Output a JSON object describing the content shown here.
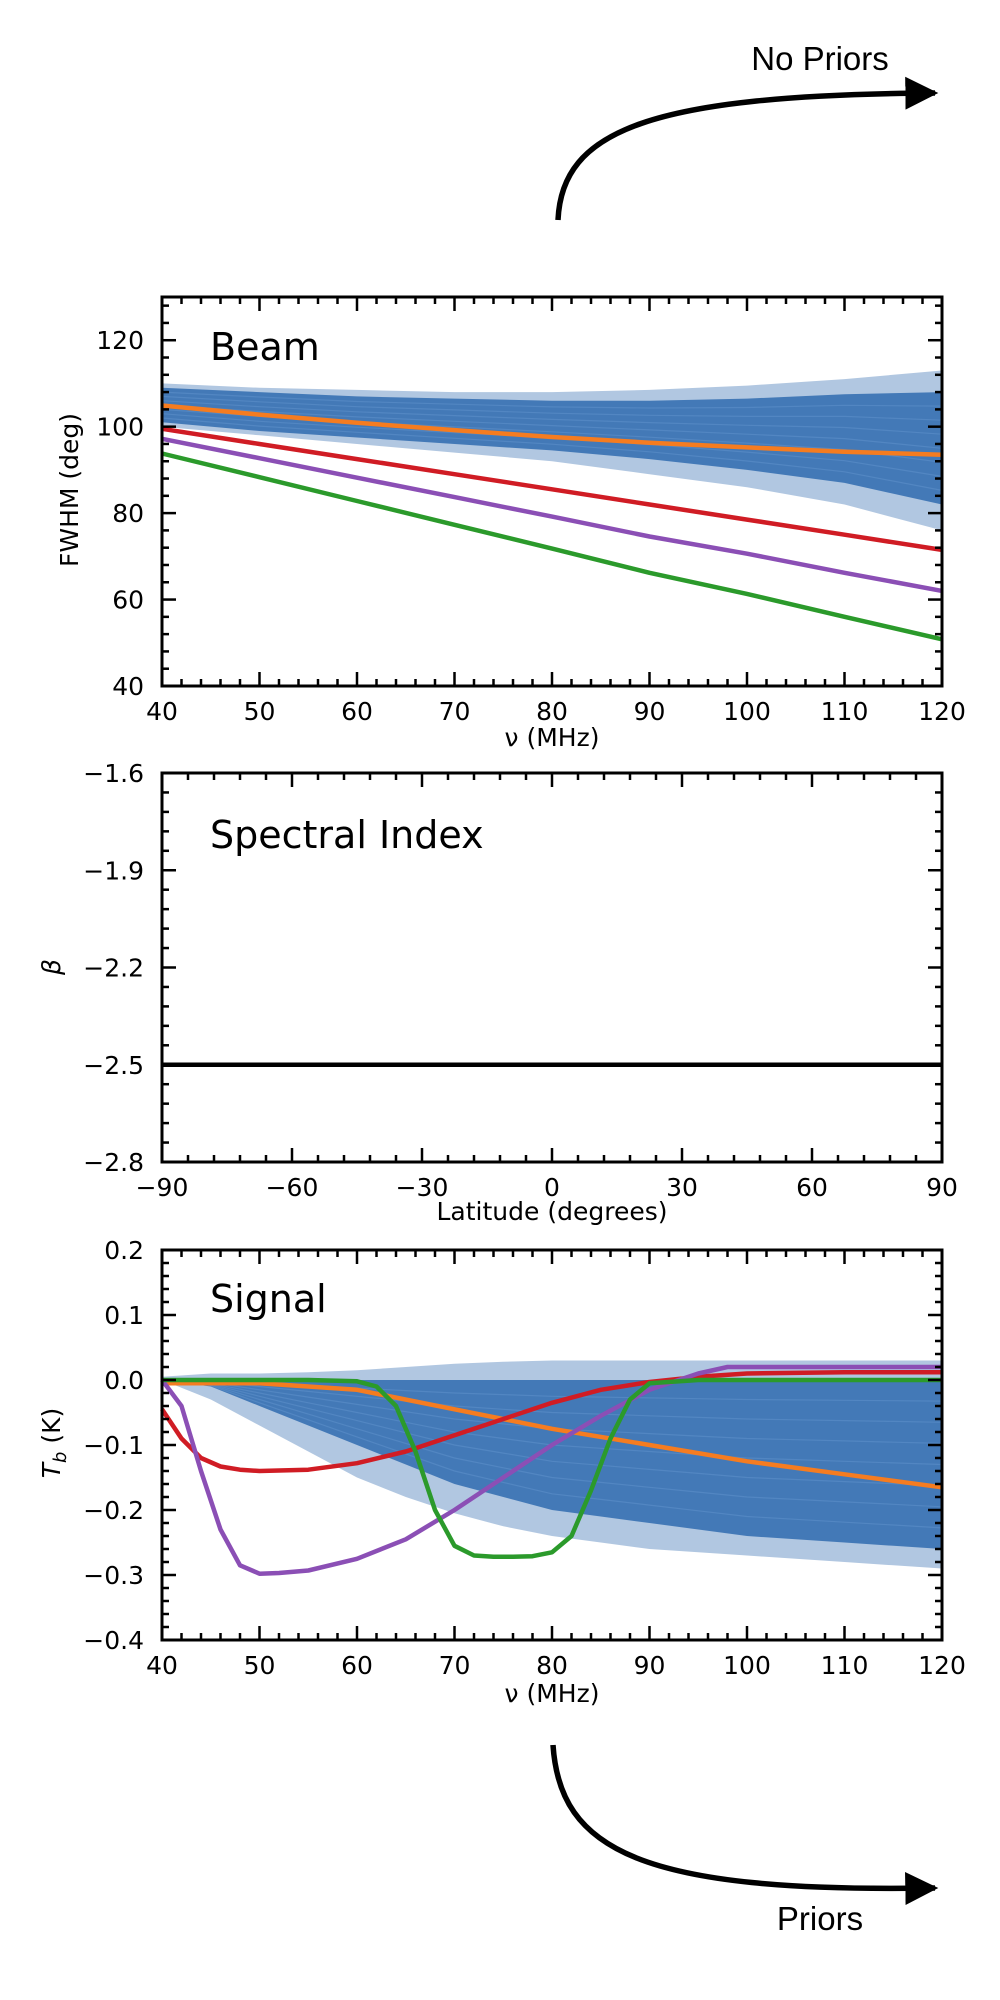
{
  "annotations": {
    "top": "No Priors",
    "bottom": "Priors"
  },
  "colors": {
    "band": "#1f5fa8",
    "orange": "#f57c20",
    "red": "#d01c24",
    "purple": "#8b4fb5",
    "green": "#2b9a2b",
    "black": "#000000"
  },
  "chart_data": [
    {
      "id": "beam",
      "type": "line",
      "title": "Beam",
      "xlabel": "ν (MHz)",
      "ylabel": "FWHM (deg)",
      "xlim": [
        40,
        120
      ],
      "ylim": [
        40,
        130
      ],
      "xticks": [
        40,
        50,
        60,
        70,
        80,
        90,
        100,
        110,
        120
      ],
      "yticks": [
        40,
        60,
        80,
        100,
        120
      ],
      "xtick_labels": [
        "40",
        "50",
        "60",
        "70",
        "80",
        "90",
        "100",
        "110",
        "120"
      ],
      "ytick_labels": [
        "40",
        "60",
        "80",
        "100",
        "120"
      ],
      "band": {
        "name": "posterior samples",
        "x": [
          40,
          50,
          60,
          70,
          80,
          90,
          100,
          110,
          120
        ],
        "upper": [
          110,
          109,
          108.5,
          108,
          108,
          108.5,
          109.5,
          111,
          113
        ],
        "lower": [
          100,
          98,
          96,
          94,
          92,
          89,
          86,
          82,
          76
        ],
        "core_upper": [
          109,
          108,
          107,
          106.5,
          106,
          106,
          106.5,
          107.5,
          108
        ],
        "core_lower": [
          101,
          99,
          97.5,
          96,
          94.5,
          92.5,
          90,
          87,
          82
        ]
      },
      "series": [
        {
          "name": "orange",
          "x": [
            40,
            50,
            60,
            70,
            80,
            90,
            100,
            110,
            120
          ],
          "values": [
            104.9,
            102.8,
            100.9,
            99.2,
            97.6,
            96.3,
            95.2,
            94.2,
            93.5
          ]
        },
        {
          "name": "red",
          "x": [
            40,
            50,
            60,
            70,
            80,
            90,
            100,
            110,
            120
          ],
          "values": [
            99.5,
            96.0,
            92.5,
            89.0,
            85.5,
            82.0,
            78.5,
            75.0,
            71.5
          ]
        },
        {
          "name": "purple",
          "x": [
            40,
            50,
            60,
            70,
            80,
            90,
            100,
            110,
            120
          ],
          "values": [
            97.2,
            92.7,
            88.2,
            83.7,
            79.2,
            74.6,
            70.6,
            66.2,
            62.0
          ]
        },
        {
          "name": "green",
          "x": [
            40,
            50,
            60,
            70,
            80,
            90,
            100,
            110,
            120
          ],
          "values": [
            93.8,
            88.3,
            82.8,
            77.3,
            71.8,
            66.2,
            61.3,
            56.0,
            50.8
          ]
        }
      ]
    },
    {
      "id": "spectral-index",
      "type": "line",
      "title": "Spectral Index",
      "xlabel": "Latitude (degrees)",
      "ylabel": "β",
      "xlim": [
        -90,
        90
      ],
      "ylim": [
        -2.8,
        -1.6
      ],
      "xticks": [
        -90,
        -60,
        -30,
        0,
        30,
        60,
        90
      ],
      "yticks": [
        -2.8,
        -2.5,
        -2.2,
        -1.9,
        -1.6
      ],
      "xtick_labels": [
        "−90",
        "−60",
        "−30",
        "0",
        "30",
        "60",
        "90"
      ],
      "ytick_labels": [
        "−2.8",
        "−2.5",
        "−2.2",
        "−1.9",
        "−1.6"
      ],
      "series": [
        {
          "name": "black",
          "x": [
            -90,
            90
          ],
          "values": [
            -2.5,
            -2.5
          ]
        }
      ]
    },
    {
      "id": "signal",
      "type": "line",
      "title": "Signal",
      "xlabel": "ν (MHz)",
      "ylabel": "T_b (K)",
      "xlim": [
        40,
        120
      ],
      "ylim": [
        -0.4,
        0.2
      ],
      "xticks": [
        40,
        50,
        60,
        70,
        80,
        90,
        100,
        110,
        120
      ],
      "yticks": [
        -0.4,
        -0.3,
        -0.2,
        -0.1,
        0.0,
        0.1,
        0.2
      ],
      "xtick_labels": [
        "40",
        "50",
        "60",
        "70",
        "80",
        "90",
        "100",
        "110",
        "120"
      ],
      "ytick_labels": [
        "−0.4",
        "−0.3",
        "−0.2",
        "−0.1",
        "0.0",
        "0.1",
        "0.2"
      ],
      "band": {
        "name": "posterior samples",
        "x": [
          40,
          45,
          50,
          55,
          60,
          65,
          70,
          75,
          80,
          85,
          90,
          95,
          100,
          105,
          110,
          115,
          120
        ],
        "upper": [
          0.005,
          0.01,
          0.01,
          0.012,
          0.015,
          0.02,
          0.025,
          0.028,
          0.03,
          0.03,
          0.03,
          0.03,
          0.03,
          0.03,
          0.03,
          0.03,
          0.03
        ],
        "lower": [
          0.0,
          -0.03,
          -0.07,
          -0.11,
          -0.15,
          -0.18,
          -0.205,
          -0.225,
          -0.24,
          -0.25,
          -0.26,
          -0.265,
          -0.27,
          -0.275,
          -0.28,
          -0.285,
          -0.29
        ],
        "core_upper": [
          0.0,
          0.0,
          0.0,
          0.0,
          0.0,
          0.0,
          0.0,
          0.0,
          0.0,
          0.0,
          0.0,
          0.0,
          0.0,
          0.0,
          0.0,
          0.0,
          0.0
        ],
        "core_lower": [
          0.0,
          -0.01,
          -0.04,
          -0.07,
          -0.1,
          -0.13,
          -0.16,
          -0.18,
          -0.2,
          -0.21,
          -0.22,
          -0.23,
          -0.24,
          -0.245,
          -0.25,
          -0.255,
          -0.26
        ]
      },
      "series": [
        {
          "name": "orange",
          "x": [
            40,
            50,
            60,
            70,
            80,
            90,
            100,
            110,
            120
          ],
          "values": [
            -0.005,
            -0.005,
            -0.015,
            -0.045,
            -0.075,
            -0.1,
            -0.125,
            -0.145,
            -0.165
          ]
        },
        {
          "name": "red",
          "x": [
            40,
            42,
            44,
            46,
            48,
            50,
            55,
            60,
            65,
            70,
            75,
            80,
            85,
            90,
            95,
            100,
            110,
            120
          ],
          "values": [
            -0.045,
            -0.09,
            -0.12,
            -0.133,
            -0.138,
            -0.14,
            -0.138,
            -0.128,
            -0.11,
            -0.085,
            -0.06,
            -0.035,
            -0.015,
            -0.003,
            0.005,
            0.01,
            0.012,
            0.012
          ]
        },
        {
          "name": "purple",
          "x": [
            40,
            42,
            44,
            46,
            48,
            50,
            52,
            55,
            60,
            65,
            70,
            75,
            80,
            85,
            90,
            95,
            98,
            100,
            110,
            120
          ],
          "values": [
            0.0,
            -0.04,
            -0.14,
            -0.23,
            -0.285,
            -0.298,
            -0.297,
            -0.293,
            -0.275,
            -0.245,
            -0.2,
            -0.15,
            -0.1,
            -0.055,
            -0.015,
            0.01,
            0.02,
            0.02,
            0.02,
            0.02
          ]
        },
        {
          "name": "green",
          "x": [
            40,
            55,
            60,
            62,
            64,
            66,
            68,
            70,
            72,
            74,
            76,
            78,
            80,
            82,
            84,
            86,
            88,
            90,
            95,
            100,
            110,
            120
          ],
          "values": [
            0.0,
            0.0,
            -0.002,
            -0.01,
            -0.04,
            -0.11,
            -0.2,
            -0.255,
            -0.27,
            -0.272,
            -0.272,
            -0.271,
            -0.265,
            -0.24,
            -0.17,
            -0.09,
            -0.03,
            -0.005,
            0.0,
            0.0,
            0.0,
            0.0
          ]
        }
      ]
    }
  ]
}
